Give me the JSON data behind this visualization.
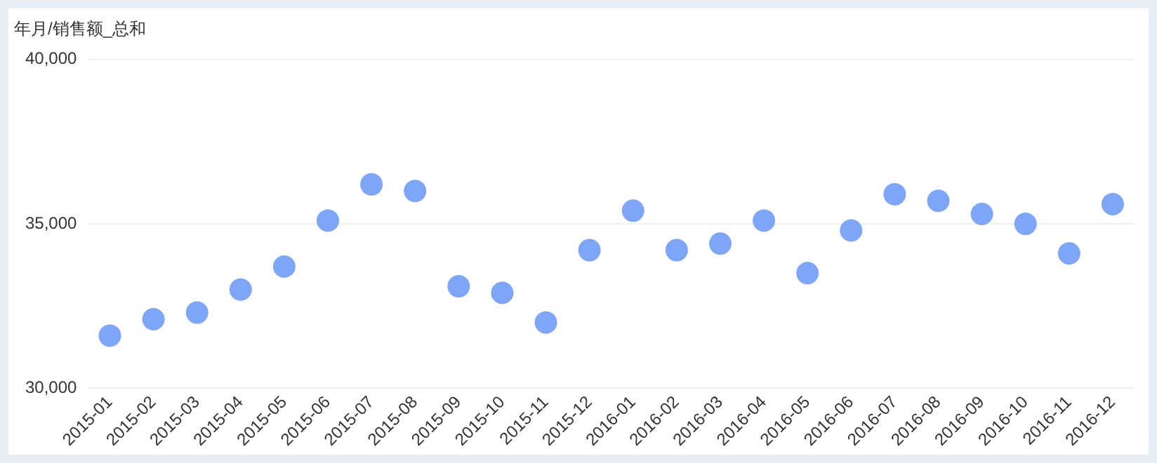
{
  "chart_data": {
    "type": "scatter",
    "title": "年月/销售额_总和",
    "categories": [
      "2015-01",
      "2015-02",
      "2015-03",
      "2015-04",
      "2015-05",
      "2015-06",
      "2015-07",
      "2015-08",
      "2015-09",
      "2015-10",
      "2015-11",
      "2015-12",
      "2016-01",
      "2016-02",
      "2016-03",
      "2016-04",
      "2016-05",
      "2016-06",
      "2016-07",
      "2016-08",
      "2016-09",
      "2016-10",
      "2016-11",
      "2016-12"
    ],
    "values": [
      31600,
      32100,
      32300,
      33000,
      33700,
      35100,
      36200,
      36000,
      33100,
      32900,
      32000,
      34200,
      35400,
      34200,
      34400,
      35100,
      33500,
      34800,
      35900,
      35700,
      35300,
      35000,
      34100,
      35600
    ],
    "color": "#7ea6f8",
    "marker": "circle",
    "ylim": [
      30000,
      40000
    ],
    "yticks": [
      {
        "value": 30000,
        "label": "30,000"
      },
      {
        "value": 35000,
        "label": "35,000"
      },
      {
        "value": 40000,
        "label": "40,000"
      }
    ],
    "grid": "y",
    "legend": false
  }
}
